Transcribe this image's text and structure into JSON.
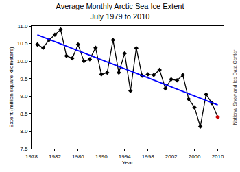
{
  "chart_data": {
    "type": "line",
    "title": "Average Monthly Arctic Sea Ice Extent",
    "subtitle": "July 1979 to 2010",
    "x_label": "Year",
    "y_label": "Extent (million square kilometers)",
    "annotations": [
      "National Snow and Ice Data Center"
    ],
    "xlim": [
      1978,
      2011
    ],
    "xticks": [
      1978,
      1982,
      1986,
      1990,
      1994,
      1998,
      2002,
      2006,
      2010
    ],
    "ylim": [
      7.5,
      11.0
    ],
    "yticks": [
      7.5,
      {
        "value": 8.0,
        "label": "8.0"
      },
      8.5,
      {
        "value": 9.0,
        "label": "9.0"
      },
      9.5,
      {
        "value": 10.0,
        "label": "10.0"
      },
      10.5,
      {
        "value": 11.0,
        "label": "11.0"
      }
    ],
    "grid": false,
    "series": [
      {
        "x": [
          1979,
          1980,
          1981,
          1982,
          1983,
          1984,
          1985,
          1986,
          1987,
          1988,
          1989,
          1990,
          1991,
          1992,
          1993,
          1994,
          1995,
          1996,
          1997,
          1998,
          1999,
          2000,
          2001,
          2002,
          2003,
          2004,
          2005,
          2006,
          2007,
          2008,
          2009,
          2010
        ],
        "values": [
          10.47,
          10.38,
          10.6,
          10.75,
          10.9,
          10.15,
          10.08,
          10.47,
          10.0,
          10.05,
          10.38,
          9.62,
          9.67,
          10.6,
          9.67,
          10.22,
          9.15,
          10.37,
          9.58,
          9.62,
          9.6,
          9.75,
          9.22,
          9.48,
          9.45,
          9.6,
          8.92,
          8.68,
          8.13,
          9.05,
          8.8,
          8.4
        ],
        "color": "#000000",
        "colors": [
          "#000000",
          "#000000",
          "#000000",
          "#000000",
          "#000000",
          "#000000",
          "#000000",
          "#000000",
          "#000000",
          "#000000",
          "#000000",
          "#000000",
          "#000000",
          "#000000",
          "#000000",
          "#000000",
          "#000000",
          "#000000",
          "#000000",
          "#000000",
          "#000000",
          "#000000",
          "#000000",
          "#000000",
          "#000000",
          "#000000",
          "#000000",
          "#000000",
          "#000000",
          "#000000",
          "#000000",
          "#cc0000"
        ],
        "marker": "diamond",
        "line_style": "solid"
      },
      {
        "x": [
          1979,
          2010
        ],
        "values": [
          10.75,
          8.75
        ],
        "color": "#0000ff",
        "marker": "none",
        "line_style": "solid"
      }
    ]
  }
}
